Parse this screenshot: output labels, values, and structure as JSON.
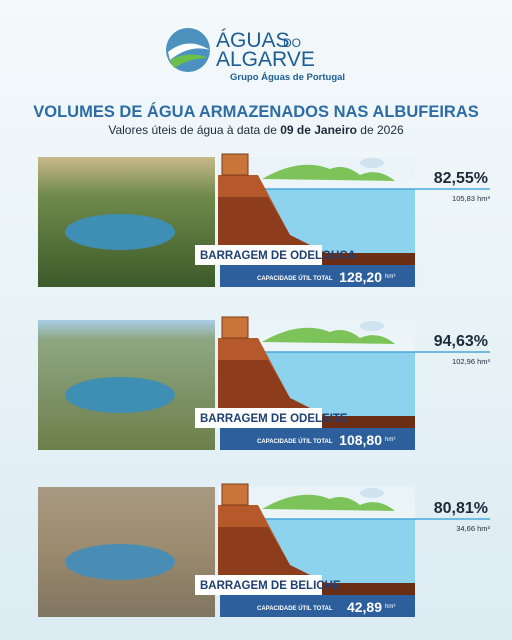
{
  "header": {
    "logo_word1": "ÁGUAS",
    "logo_word2": "DO",
    "logo_word3": "ALGARVE",
    "group": "Grupo Águas de Portugal"
  },
  "title": "VOLUMES DE ÁGUA ARMAZENADOS NAS ALBUFEIRAS",
  "subtitle": {
    "prefix": "Valores úteis de água à data de ",
    "date": "09 de Janeiro",
    "suffix": " de 2026"
  },
  "dams": [
    {
      "name": "BARRAGEM DE ODELOUCA",
      "percent": "82,55%",
      "volume": "105,83 hm³",
      "capacity_label": "CAPACIDADE ÚTIL TOTAL",
      "capacity": "128,20",
      "capacity_unit": "hm³"
    },
    {
      "name": "BARRAGEM DE ODELEITE",
      "percent": "94,63%",
      "volume": "102,96 hm³",
      "capacity_label": "CAPACIDADE ÚTIL TOTAL",
      "capacity": "108,80",
      "capacity_unit": "hm³"
    },
    {
      "name": "BARRAGEM DE BELICHE",
      "percent": "80,81%",
      "volume": "34,66 hm³",
      "capacity_label": "CAPACIDADE ÚTIL TOTAL",
      "capacity": "42,89",
      "capacity_unit": "hm³"
    }
  ]
}
